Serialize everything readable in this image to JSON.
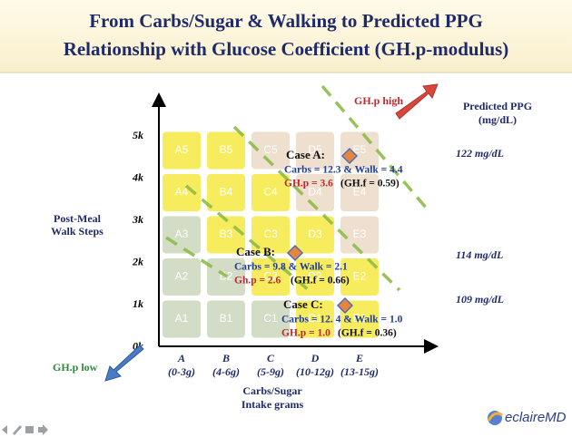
{
  "header": {
    "title": [
      "From Carbs/Sugar & Walking to Predicted PPG",
      "Relationship with Glucose Coefficient (GH.p-modulus)"
    ]
  },
  "y_axis": {
    "label": [
      "Post-Meal",
      "Walk Steps"
    ],
    "ticks": [
      "5k",
      "4k",
      "3k",
      "2k",
      "1k",
      "0k"
    ]
  },
  "x_axis": {
    "label": [
      "Carbs/Sugar",
      "Intake grams"
    ],
    "categories": [
      {
        "letter": "A",
        "range": "(0-3g)"
      },
      {
        "letter": "B",
        "range": "(4-6g)"
      },
      {
        "letter": "C",
        "range": "(5-9g)"
      },
      {
        "letter": "D",
        "range": "(10-12g)"
      },
      {
        "letter": "E",
        "range": "(13-15g)"
      }
    ]
  },
  "cells": [
    [
      {
        "label": "A5",
        "color": "#f6ec5e"
      },
      {
        "label": "B5",
        "color": "#f6ec5e"
      },
      {
        "label": "C5",
        "color": "#eedfcf"
      },
      {
        "label": "D5",
        "color": "#eedfcf"
      },
      {
        "label": "E5",
        "color": "#eedfcf"
      }
    ],
    [
      {
        "label": "A4",
        "color": "#f6ec5e"
      },
      {
        "label": "B4",
        "color": "#f6ec5e"
      },
      {
        "label": "C4",
        "color": "#f6ec5e"
      },
      {
        "label": "D4",
        "color": "#eedfcf"
      },
      {
        "label": "E4",
        "color": "#eedfcf"
      }
    ],
    [
      {
        "label": "A3",
        "color": "#d3dcc4"
      },
      {
        "label": "B3",
        "color": "#f6ec5e"
      },
      {
        "label": "C3",
        "color": "#f6ec5e"
      },
      {
        "label": "D3",
        "color": "#f6ec5e"
      },
      {
        "label": "E3",
        "color": "#eedfcf"
      }
    ],
    [
      {
        "label": "A2",
        "color": "#d3dcc4"
      },
      {
        "label": "B2",
        "color": "#d3dcc4"
      },
      {
        "label": "C2",
        "color": "#f6ec5e"
      },
      {
        "label": "D2",
        "color": "#f6ec5e"
      },
      {
        "label": "E2",
        "color": "#f6ec5e"
      }
    ],
    [
      {
        "label": "A1",
        "color": "#d3dcc4"
      },
      {
        "label": "B1",
        "color": "#d3dcc4"
      },
      {
        "label": "C1",
        "color": "#d3dcc4"
      },
      {
        "label": "D1",
        "color": "#f6ec5e"
      },
      {
        "label": "E1",
        "color": "#f6ec5e"
      }
    ]
  ],
  "right_axis": {
    "label": [
      "Predicted PPG",
      "(mg/dL)"
    ],
    "values": [
      "122 mg/dL",
      "114 mg/dL",
      "109 mg/dL"
    ]
  },
  "arrows": {
    "high": "GH.p high",
    "low": "GH.p low"
  },
  "cases": [
    {
      "title": "Case A:",
      "carbs_walk": "Carbs = 12.3 & Walk = 4.4",
      "ghp": "GH.p = 3.6",
      "ghf": "(GH.f = 0.59)"
    },
    {
      "title": "Case B:",
      "carbs_walk": "Carbs = 9.8  & Walk = 2.1",
      "ghp": "Gh.p = 2.6",
      "ghf": "(GH.f = 0.66)"
    },
    {
      "title": "Case C:",
      "carbs_walk": "Carbs = 12. 4 & Walk = 1.0",
      "ghp": "GH.p = 1.0",
      "ghf": "(GH.f = 0.36)"
    }
  ],
  "logo": {
    "text": "eclaireMD"
  }
}
